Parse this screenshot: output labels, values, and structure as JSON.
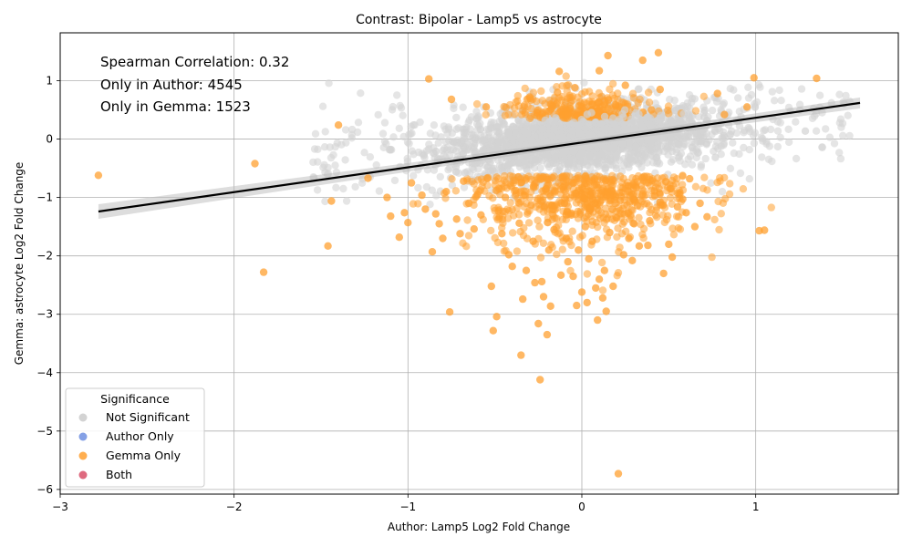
{
  "chart_data": {
    "type": "scatter",
    "title": "Contrast: Bipolar - Lamp5 vs astrocyte",
    "xlabel": "Author: Lamp5 Log2 Fold Change",
    "ylabel": "Gemma: astrocyte Log2 Fold Change",
    "xlim": [
      -3.0,
      1.82
    ],
    "ylim": [
      -6.08,
      1.82
    ],
    "xticks": [
      -3,
      -2,
      -1,
      0,
      1
    ],
    "yticks": [
      -6,
      -5,
      -4,
      -3,
      -2,
      -1,
      0,
      1
    ],
    "grid": true,
    "annotations": [
      "Spearman Correlation: 0.32",
      "Only in Author: 4545",
      "Only in Gemma: 1523"
    ],
    "legend": {
      "title": "Significance",
      "position": "lower-left",
      "entries": [
        {
          "label": "Not Significant",
          "color": "#d3d3d3"
        },
        {
          "label": "Author Only",
          "color": "#6f8fe0"
        },
        {
          "label": "Gemma Only",
          "color": "#ffa030"
        },
        {
          "label": "Both",
          "color": "#d85068"
        }
      ]
    },
    "regression": {
      "x": [
        -2.78,
        1.6
      ],
      "y": [
        -1.24,
        0.62
      ]
    },
    "series": [
      {
        "name": "Gemma Only",
        "color": "#ffa030",
        "points": [
          [
            -2.78,
            -0.62
          ],
          [
            -1.88,
            -0.42
          ],
          [
            -1.83,
            -2.28
          ],
          [
            -1.46,
            -1.83
          ],
          [
            -1.44,
            -1.06
          ],
          [
            -1.4,
            0.24
          ],
          [
            -1.23,
            -0.67
          ],
          [
            -1.12,
            -1.0
          ],
          [
            -1.1,
            -1.32
          ],
          [
            -1.05,
            -1.68
          ],
          [
            -1.02,
            -1.26
          ],
          [
            -1.0,
            -1.43
          ],
          [
            -0.98,
            -0.75
          ],
          [
            -0.92,
            -0.96
          ],
          [
            -0.9,
            -1.2
          ],
          [
            -0.88,
            1.03
          ],
          [
            -0.86,
            -1.93
          ],
          [
            -0.84,
            -1.28
          ],
          [
            -0.82,
            -1.45
          ],
          [
            -0.8,
            -1.7
          ],
          [
            -0.78,
            -0.9
          ],
          [
            -0.76,
            -2.96
          ],
          [
            -0.75,
            0.68
          ],
          [
            -0.72,
            -1.37
          ],
          [
            -0.7,
            -1.62
          ],
          [
            -0.68,
            -0.72
          ],
          [
            -0.65,
            -1.1
          ],
          [
            -0.62,
            -1.54
          ],
          [
            -0.6,
            -0.95
          ],
          [
            -0.58,
            -1.3
          ],
          [
            -0.55,
            0.55
          ],
          [
            -0.52,
            -2.52
          ],
          [
            -0.51,
            -3.28
          ],
          [
            -0.49,
            -3.04
          ],
          [
            -0.48,
            -1.23
          ],
          [
            -0.46,
            -1.62
          ],
          [
            -0.44,
            -1.0
          ],
          [
            -0.42,
            -1.98
          ],
          [
            -0.4,
            -2.18
          ],
          [
            -0.38,
            -0.88
          ],
          [
            -0.36,
            -1.44
          ],
          [
            -0.35,
            -3.7
          ],
          [
            -0.34,
            -2.74
          ],
          [
            -0.32,
            -2.25
          ],
          [
            -0.3,
            0.72
          ],
          [
            -0.28,
            -1.75
          ],
          [
            -0.27,
            -2.46
          ],
          [
            -0.25,
            -3.16
          ],
          [
            -0.24,
            -4.12
          ],
          [
            -0.23,
            -2.44
          ],
          [
            -0.22,
            -2.7
          ],
          [
            -0.2,
            -3.35
          ],
          [
            -0.19,
            -1.9
          ],
          [
            -0.18,
            -2.86
          ],
          [
            -0.16,
            -1.55
          ],
          [
            -0.14,
            0.8
          ],
          [
            -0.13,
            1.16
          ],
          [
            -0.12,
            -2.33
          ],
          [
            -0.1,
            -1.1
          ],
          [
            -0.09,
            -1.7
          ],
          [
            -0.08,
            -2.1
          ],
          [
            -0.06,
            -1.3
          ],
          [
            -0.05,
            -2.35
          ],
          [
            -0.04,
            0.88
          ],
          [
            -0.03,
            -2.85
          ],
          [
            -0.02,
            -1.9
          ],
          [
            0.0,
            -2.62
          ],
          [
            0.02,
            -1.5
          ],
          [
            0.03,
            -2.8
          ],
          [
            0.04,
            -2.05
          ],
          [
            0.05,
            -1.2
          ],
          [
            0.06,
            -1.75
          ],
          [
            0.08,
            -2.55
          ],
          [
            0.09,
            -3.1
          ],
          [
            0.1,
            -2.4
          ],
          [
            0.1,
            1.17
          ],
          [
            0.12,
            -2.72
          ],
          [
            0.13,
            -2.25
          ],
          [
            0.14,
            -2.95
          ],
          [
            0.15,
            1.43
          ],
          [
            0.16,
            -1.6
          ],
          [
            0.18,
            -2.52
          ],
          [
            0.2,
            -1.35
          ],
          [
            0.21,
            -5.73
          ],
          [
            0.22,
            -1.05
          ],
          [
            0.24,
            -1.98
          ],
          [
            0.25,
            0.92
          ],
          [
            0.27,
            -1.7
          ],
          [
            0.29,
            -2.08
          ],
          [
            0.3,
            -1.45
          ],
          [
            0.32,
            -1.14
          ],
          [
            0.33,
            -1.83
          ],
          [
            0.35,
            1.35
          ],
          [
            0.36,
            -0.64
          ],
          [
            0.38,
            -1.82
          ],
          [
            0.39,
            -1.4
          ],
          [
            0.4,
            0.5
          ],
          [
            0.42,
            -0.97
          ],
          [
            0.44,
            1.48
          ],
          [
            0.45,
            0.85
          ],
          [
            0.47,
            -2.3
          ],
          [
            0.5,
            -1.8
          ],
          [
            0.52,
            -2.02
          ],
          [
            0.55,
            -1.16
          ],
          [
            0.58,
            -1.03
          ],
          [
            0.6,
            -1.26
          ],
          [
            0.62,
            -0.68
          ],
          [
            0.65,
            -1.5
          ],
          [
            0.68,
            -1.1
          ],
          [
            0.72,
            -1.33
          ],
          [
            0.78,
            0.78
          ],
          [
            0.82,
            0.42
          ],
          [
            0.95,
            0.55
          ],
          [
            0.99,
            1.05
          ],
          [
            1.02,
            -1.57
          ],
          [
            1.05,
            -1.56
          ],
          [
            1.35,
            1.04
          ]
        ]
      }
    ]
  }
}
